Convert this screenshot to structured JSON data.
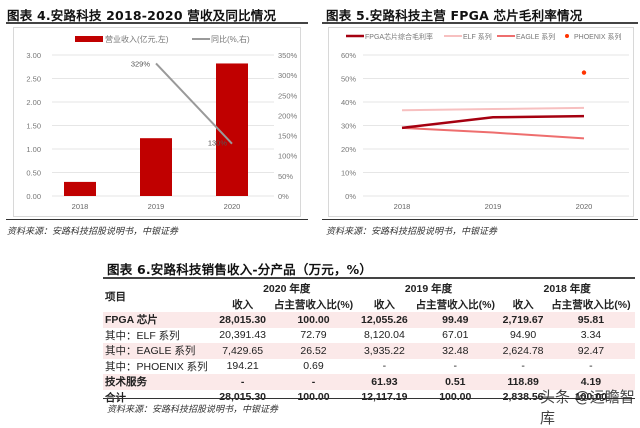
{
  "figures": {
    "fig4": {
      "title": "图表 4.安路科技 2018-2020 营收及同比情况",
      "source": "资料来源：安路科技招股说明书，中银证券"
    },
    "fig5": {
      "title": "图表 5.安路科技主营 FPGA 芯片毛利率情况",
      "source": "资料来源：安路科技招股说明书，中银证券"
    },
    "fig6": {
      "title": "图表 6.安路科技销售收入-分产品（万元，%）",
      "source": "资料来源：安路科技招股说明书，中银证券"
    }
  },
  "chart_data": [
    {
      "type": "bar",
      "title": "图表 4.安路科技 2018-2020 营收及同比情况",
      "categories": [
        "2018",
        "2019",
        "2020"
      ],
      "series": [
        {
          "name": "营业收入(亿元,左)",
          "type": "bar",
          "axis": "left",
          "color": "#c00000",
          "values": [
            0.3,
            1.23,
            2.82
          ]
        },
        {
          "name": "同比(%,右)",
          "type": "line",
          "axis": "right",
          "color": "#999999",
          "values": [
            null,
            329,
            130
          ],
          "labels": [
            "",
            "329%",
            "130%"
          ]
        }
      ],
      "left_axis": {
        "ticks": [
          "0.00",
          "0.50",
          "1.00",
          "1.50",
          "2.00",
          "2.50",
          "3.00"
        ],
        "ylim": [
          0,
          3
        ]
      },
      "right_axis": {
        "ticks": [
          "0%",
          "50%",
          "100%",
          "150%",
          "200%",
          "250%",
          "300%",
          "350%"
        ],
        "ylim": [
          0,
          350
        ]
      },
      "legend_position": "top",
      "grid": true
    },
    {
      "type": "line",
      "title": "图表 5.安路科技主营 FPGA 芯片毛利率情况",
      "categories": [
        "2018",
        "2019",
        "2020"
      ],
      "series": [
        {
          "name": "FPGA芯片综合毛利率",
          "color": "#a50010",
          "values": [
            29,
            33.5,
            34
          ]
        },
        {
          "name": "ELF 系列",
          "color": "#f7c0c0",
          "values": [
            36.5,
            37,
            37.5
          ]
        },
        {
          "name": "EAGLE 系列",
          "color": "#ee6e6e",
          "values": [
            29,
            27,
            24.5
          ]
        },
        {
          "name": "PHOENIX 系列",
          "type": "scatter",
          "color": "#ff3300",
          "values": [
            null,
            null,
            52.5
          ]
        }
      ],
      "y_axis": {
        "ticks": [
          "0%",
          "10%",
          "20%",
          "30%",
          "40%",
          "50%",
          "60%"
        ],
        "ylim": [
          0,
          60
        ]
      },
      "legend_position": "top",
      "grid": true
    },
    {
      "type": "table",
      "title": "图表 6.安路科技销售收入-分产品（万元，%）",
      "columns": [
        "项目",
        "2020 收入",
        "2020 占主营收入比(%)",
        "2019 收入",
        "2019 占主营收入比(%)",
        "2018 收入",
        "2018 占主营收入比(%)"
      ],
      "rows": [
        [
          "FPGA 芯片",
          "28,015.30",
          "100.00",
          "12,055.26",
          "99.49",
          "2,719.67",
          "95.81"
        ],
        [
          "其中：ELF 系列",
          "20,391.43",
          "72.79",
          "8,120.04",
          "67.01",
          "94.90",
          "3.34"
        ],
        [
          "其中：EAGLE 系列",
          "7,429.65",
          "26.52",
          "3,935.22",
          "32.48",
          "2,624.78",
          "92.47"
        ],
        [
          "其中：PHOENIX 系列",
          "194.21",
          "0.69",
          "-",
          "-",
          "-",
          "-"
        ],
        [
          "技术服务",
          "-",
          "-",
          "61.93",
          "0.51",
          "118.89",
          "4.19"
        ],
        [
          "合计",
          "28,015.30",
          "100.00",
          "12,117.19",
          "100.00",
          "2,838.56",
          "100.00"
        ]
      ]
    }
  ],
  "chart1": {
    "legend": {
      "bar": "营业收入(亿元,左)",
      "line": "同比(%,右)"
    },
    "left_ticks": [
      "0.00",
      "0.50",
      "1.00",
      "1.50",
      "2.00",
      "2.50",
      "3.00"
    ],
    "right_ticks": [
      "0%",
      "50%",
      "100%",
      "150%",
      "200%",
      "250%",
      "300%",
      "350%"
    ],
    "x_labels": [
      "2018",
      "2019",
      "2020"
    ],
    "bar_values": [
      0.3,
      1.23,
      2.82
    ],
    "yoy_values": [
      329,
      130
    ],
    "yoy_labels": [
      "329%",
      "130%"
    ],
    "bar_color": "#c00000",
    "line_color": "#9a9a9a"
  },
  "chart2": {
    "legend": [
      "FPGA芯片综合毛利率",
      "ELF 系列",
      "EAGLE 系列",
      "PHOENIX 系列"
    ],
    "ticks": [
      "0%",
      "10%",
      "20%",
      "30%",
      "40%",
      "50%",
      "60%"
    ],
    "x_labels": [
      "2018",
      "2019",
      "2020"
    ],
    "fpga": [
      29,
      33.5,
      34
    ],
    "elf": [
      36.5,
      37,
      37.5
    ],
    "eagle": [
      29,
      27,
      24.5
    ],
    "phoenix": 52.5,
    "colors": {
      "fpga": "#a50010",
      "elf": "#f7c0c0",
      "eagle": "#ee6e6e",
      "phoenix": "#ff3300"
    }
  },
  "table": {
    "header": {
      "item": "项目",
      "years": [
        "2020 年度",
        "2019 年度",
        "2018 年度"
      ],
      "revenue": "收入",
      "share": "占主营收入比(%)"
    },
    "rows": [
      {
        "label": "FPGA 芯片",
        "v": [
          "28,015.30",
          "100.00",
          "12,055.26",
          "99.49",
          "2,719.67",
          "95.81"
        ]
      },
      {
        "label": "其中：ELF 系列",
        "v": [
          "20,391.43",
          "72.79",
          "8,120.04",
          "67.01",
          "94.90",
          "3.34"
        ]
      },
      {
        "label": "其中：EAGLE 系列",
        "v": [
          "7,429.65",
          "26.52",
          "3,935.22",
          "32.48",
          "2,624.78",
          "92.47"
        ]
      },
      {
        "label": "其中：PHOENIX 系列",
        "v": [
          "194.21",
          "0.69",
          "-",
          "-",
          "-",
          "-"
        ]
      },
      {
        "label": "技术服务",
        "v": [
          "-",
          "-",
          "61.93",
          "0.51",
          "118.89",
          "4.19"
        ]
      },
      {
        "label": "合计",
        "v": [
          "28,015.30",
          "100.00",
          "12,117.19",
          "100.00",
          "2,838.56",
          "100.00"
        ]
      }
    ]
  },
  "watermark": "头条 @远瞻智库"
}
